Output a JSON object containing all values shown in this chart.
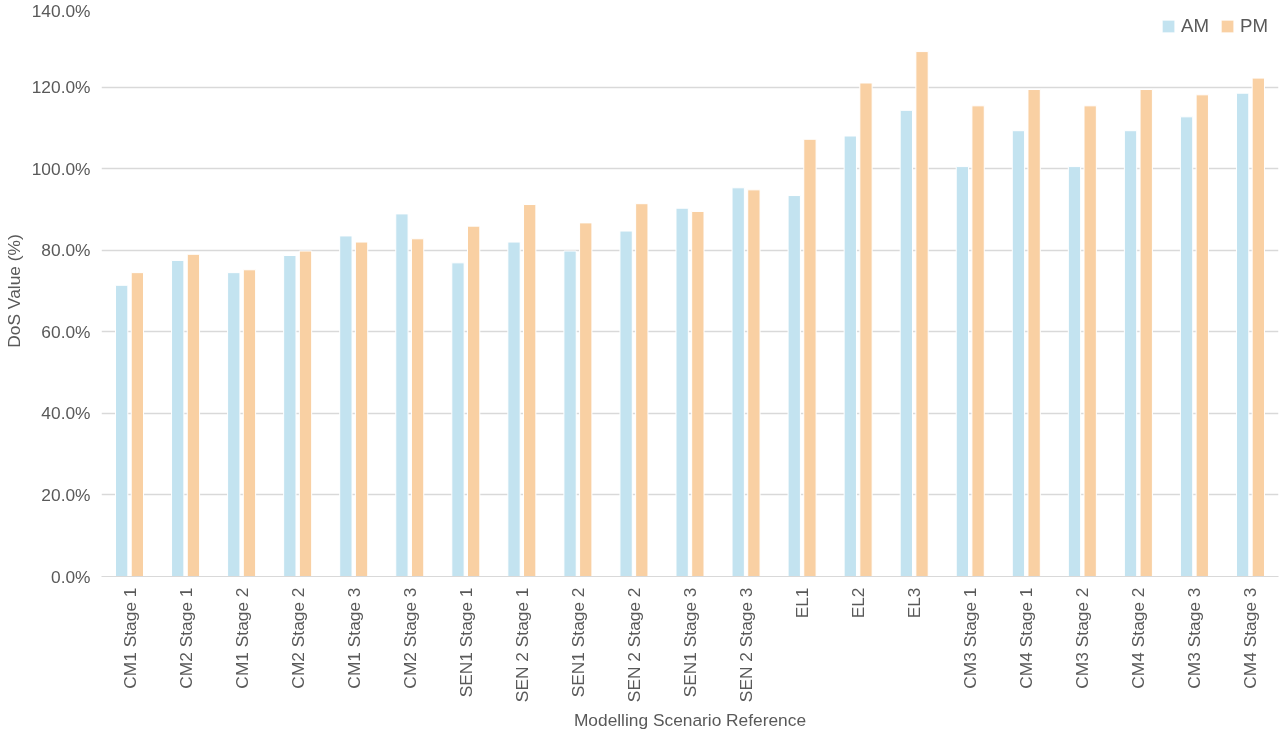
{
  "chart_data": {
    "type": "bar",
    "xlabel": "Modelling Scenario Reference",
    "ylabel": "DoS Value (%)",
    "categories": [
      "CM1 Stage 1",
      "CM2 Stage 1",
      "CM1 Stage 2",
      "CM2 Stage 2",
      "CM1 Stage 3",
      "CM2 Stage 3",
      "SEN1 Stage 1",
      "SEN 2 Stage 1",
      "SEN1 Stage 2",
      "SEN 2 Stage 2",
      "SEN1 Stage 3",
      "SEN 2 Stage 3",
      "EL1",
      "EL2",
      "EL3",
      "CM3 Stage 1",
      "CM4 Stage 1",
      "CM3 Stage 2",
      "CM4 Stage 2",
      "CM3 Stage 3",
      "CM4 Stage 3"
    ],
    "series": [
      {
        "name": "AM",
        "color": "#c3e3f0",
        "values": [
          71.4,
          77.5,
          74.5,
          78.7,
          83.5,
          88.9,
          76.9,
          82.0,
          79.8,
          84.7,
          90.3,
          95.3,
          93.4,
          108.0,
          114.3,
          100.5,
          109.3,
          100.5,
          109.3,
          112.7,
          118.5
        ]
      },
      {
        "name": "PM",
        "color": "#f9d0a3",
        "values": [
          74.5,
          79.0,
          75.2,
          79.8,
          82.0,
          82.8,
          85.9,
          91.2,
          86.7,
          91.4,
          89.5,
          94.8,
          107.2,
          121.0,
          128.7,
          115.4,
          119.4,
          115.4,
          119.4,
          118.1,
          122.2
        ]
      }
    ],
    "ylim": [
      0,
      140
    ],
    "yticks": [
      {
        "value": 0,
        "label": "0.0%"
      },
      {
        "value": 20,
        "label": "20.0%"
      },
      {
        "value": 40,
        "label": "40.0%"
      },
      {
        "value": 60,
        "label": "60.0%"
      },
      {
        "value": 80,
        "label": "80.0%"
      },
      {
        "value": 100,
        "label": "100.0%"
      },
      {
        "value": 120,
        "label": "120.0%"
      },
      {
        "value": 140,
        "label": "140.0%"
      }
    ],
    "grid": "y",
    "legend": "top right"
  }
}
